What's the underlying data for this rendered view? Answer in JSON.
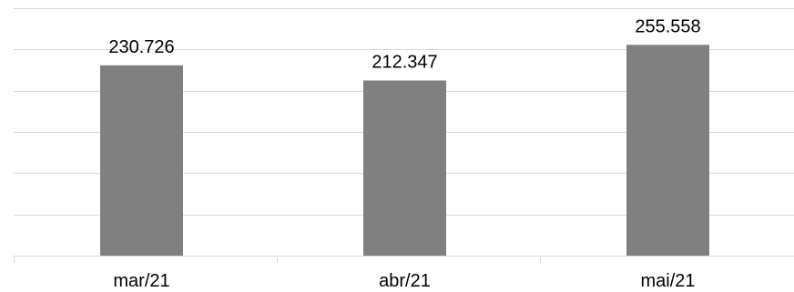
{
  "chart_data": {
    "type": "bar",
    "categories": [
      "mar/21",
      "abr/21",
      "mai/21"
    ],
    "values": [
      230726,
      212347,
      255558
    ],
    "data_labels": [
      "230.726",
      "212.347",
      "255.558"
    ],
    "title": "",
    "xlabel": "",
    "ylabel": "",
    "ylim": [
      0,
      300000
    ],
    "grid": true,
    "legend": "none",
    "bar_color": "#808080",
    "grid_color": "#d9d9d9"
  }
}
